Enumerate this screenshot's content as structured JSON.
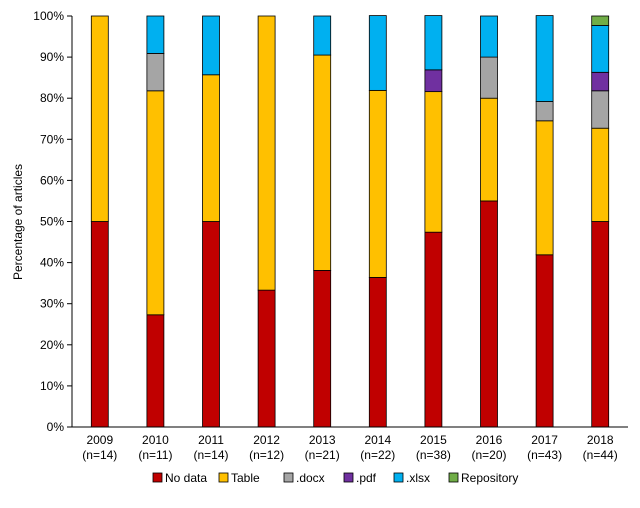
{
  "chart_data": {
    "type": "bar",
    "stacked": true,
    "title": "",
    "xlabel": "",
    "ylabel": "Percentage of articles",
    "ylim": [
      0,
      100
    ],
    "y_ticks": [
      "0%",
      "10%",
      "20%",
      "30%",
      "40%",
      "50%",
      "60%",
      "70%",
      "80%",
      "90%",
      "100%"
    ],
    "y_tick_values": [
      0,
      10,
      20,
      30,
      40,
      50,
      60,
      70,
      80,
      90,
      100
    ],
    "grid": false,
    "legend_position": "bottom",
    "categories": [
      "2009",
      "2010",
      "2011",
      "2012",
      "2013",
      "2014",
      "2015",
      "2016",
      "2017",
      "2018"
    ],
    "category_counts": [
      "(n=14)",
      "(n=11)",
      "(n=14)",
      "(n=12)",
      "(n=21)",
      "(n=22)",
      "(n=38)",
      "(n=20)",
      "(n=43)",
      "(n=44)"
    ],
    "series": [
      {
        "name": "No data",
        "color": "#c00000",
        "values": [
          50.0,
          27.3,
          50.0,
          33.3,
          38.1,
          36.4,
          47.4,
          55.0,
          41.9,
          50.0
        ]
      },
      {
        "name": "Table",
        "color": "#ffc000",
        "values": [
          50.0,
          54.5,
          35.7,
          66.7,
          52.4,
          45.5,
          34.2,
          25.0,
          32.6,
          22.7
        ]
      },
      {
        "name": ".docx",
        "color": "#a5a5a5",
        "values": [
          0,
          9.1,
          0,
          0,
          0,
          0,
          0,
          10.0,
          4.7,
          9.1
        ]
      },
      {
        "name": ".pdf",
        "color": "#7030a0",
        "values": [
          0,
          0,
          0,
          0,
          0,
          0,
          5.3,
          0,
          0,
          4.5
        ]
      },
      {
        "name": ".xlsx",
        "color": "#00b0f0",
        "values": [
          0,
          9.1,
          14.3,
          0,
          9.5,
          18.2,
          13.2,
          10.0,
          20.9,
          11.4
        ]
      },
      {
        "name": "Repository",
        "color": "#70ad47",
        "values": [
          0,
          0,
          0,
          0,
          0,
          0,
          0,
          0,
          0,
          2.3
        ]
      }
    ]
  }
}
